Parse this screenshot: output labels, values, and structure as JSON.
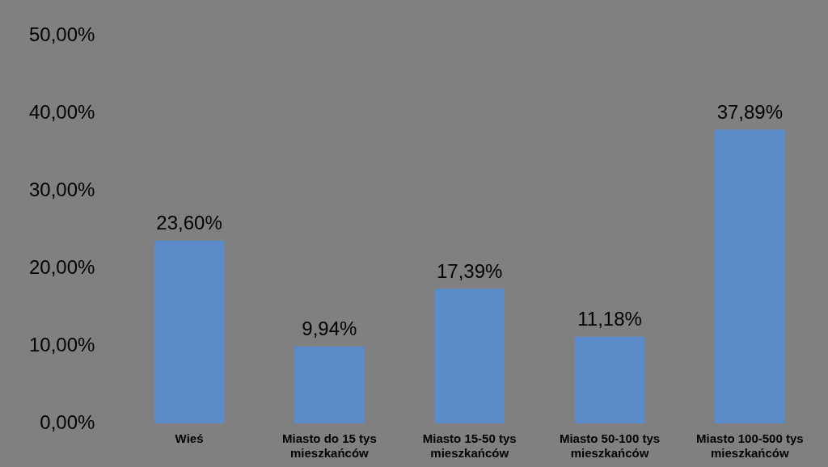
{
  "chart_data": {
    "type": "bar",
    "categories": [
      "Wieś",
      "Miasto do 15 tys mieszkańców",
      "Miasto 15-50 tys mieszkańców",
      "Miasto 50-100 tys mieszkańców",
      "Miasto 100-500 tys mieszkańców"
    ],
    "values": [
      23.6,
      9.94,
      17.39,
      11.18,
      37.89
    ],
    "value_labels": [
      "23,60%",
      "9,94%",
      "17,39%",
      "11,18%",
      "37,89%"
    ],
    "color": "#5b8bc9",
    "ylim": [
      0,
      50
    ],
    "yticks": [
      {
        "value": 0,
        "label": "0,00%"
      },
      {
        "value": 10,
        "label": "10,00%"
      },
      {
        "value": 20,
        "label": "20,00%"
      },
      {
        "value": 30,
        "label": "30,00%"
      },
      {
        "value": 40,
        "label": "40,00%"
      },
      {
        "value": 50,
        "label": "50,00%"
      }
    ],
    "grid": false,
    "data_labels": true
  }
}
